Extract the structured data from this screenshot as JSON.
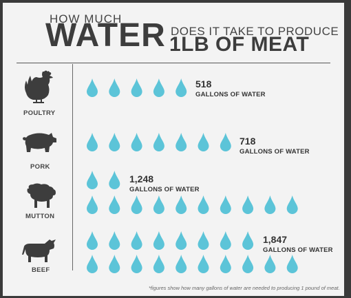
{
  "title": {
    "line1": "HOW MUCH",
    "line2": "WATER",
    "line3": "DOES IT TAKE TO PRODUCE",
    "line4": "1LB OF MEAT"
  },
  "footnote": "*figures show how many gallons of water are needed to producing 1 pound of meat.",
  "drop_color": "#5cc4d8",
  "chart_data": {
    "type": "bar",
    "title": "HOW MUCH WATER DOES IT TAKE TO PRODUCE 1LB OF MEAT",
    "unit": "GALLONS OF WATER",
    "categories": [
      "POULTRY",
      "PORK",
      "MUTTON",
      "BEEF"
    ],
    "values": [
      518,
      718,
      1248,
      1847
    ],
    "value_labels": [
      "518",
      "718",
      "1,248",
      "1,847"
    ],
    "icons": [
      "chicken-icon",
      "pig-icon",
      "sheep-icon",
      "cow-icon"
    ]
  }
}
